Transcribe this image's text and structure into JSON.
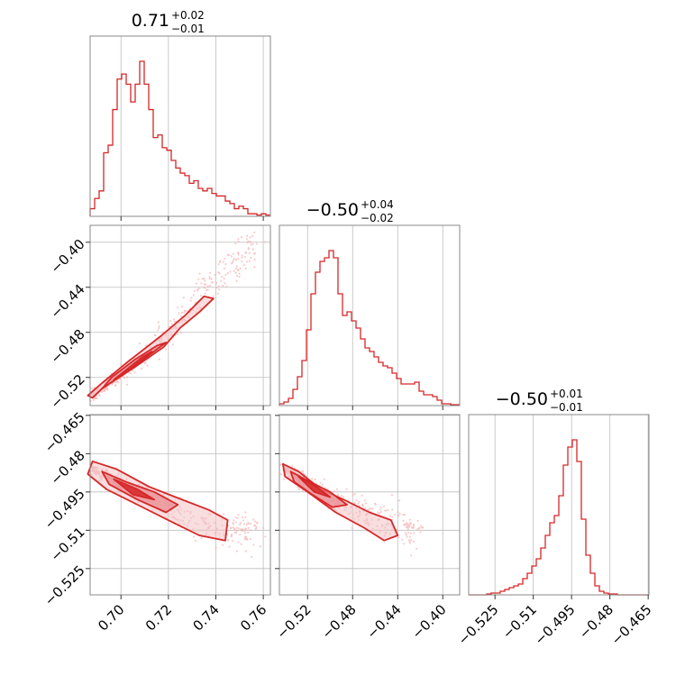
{
  "figure": {
    "type": "corner",
    "color": "#d62728",
    "fill_colors": [
      "#f2c2c4",
      "#e8888c",
      "#d62728"
    ],
    "sample_color": "#f4b6b8"
  },
  "chart_data": [
    {
      "type": "histogram",
      "panel": "diag-0",
      "title_main": "0.71",
      "title_plus": "+0.02",
      "title_minus": "−0.01",
      "xlim": [
        0.687,
        0.763
      ],
      "xticks": [
        0.7,
        0.72,
        0.74,
        0.76
      ],
      "bin_edges_start": 0.687,
      "bin_width": 0.0019,
      "counts": [
        3,
        7,
        10,
        25,
        28,
        42,
        54,
        56,
        52,
        45,
        52,
        61,
        52,
        42,
        31,
        32,
        27,
        26,
        22,
        19,
        17,
        16,
        13,
        14,
        11,
        10,
        11,
        9,
        8,
        8,
        6,
        5,
        3,
        4,
        3,
        1,
        1,
        0.5,
        1,
        0.5
      ]
    },
    {
      "type": "histogram",
      "panel": "diag-1",
      "title_main": "−0.50",
      "title_plus": "+0.04",
      "title_minus": "−0.02",
      "xlim": [
        -0.545,
        -0.385
      ],
      "xticks": [
        -0.52,
        -0.48,
        -0.44,
        -0.4
      ],
      "counts": [
        1,
        2,
        4,
        9,
        16,
        25,
        42,
        62,
        74,
        80,
        82,
        86,
        82,
        62,
        50,
        52,
        47,
        43,
        37,
        32,
        30,
        27,
        24,
        22,
        21,
        18,
        15,
        12,
        12,
        12,
        13,
        8,
        6,
        6,
        5,
        3,
        1,
        1,
        0.5,
        0.5
      ]
    },
    {
      "type": "histogram",
      "panel": "diag-2",
      "title_main": "−0.50",
      "title_plus": "+0.01",
      "title_minus": "−0.01",
      "xlim": [
        -0.5353,
        -0.4647
      ],
      "xticks": [
        -0.525,
        -0.51,
        -0.495,
        -0.48,
        -0.465
      ],
      "counts": [
        0,
        0,
        0,
        0,
        0.5,
        1,
        1,
        2,
        3,
        4,
        5,
        6,
        9,
        12,
        16,
        20,
        26,
        33,
        40,
        44,
        55,
        72,
        82,
        86,
        74,
        42,
        22,
        12,
        5,
        2,
        1,
        0.5,
        0.5,
        0,
        0,
        0,
        0,
        0,
        0,
        0
      ]
    },
    {
      "type": "scatter",
      "panel": "2d-1-0",
      "xlim": [
        0.687,
        0.763
      ],
      "ylim": [
        -0.545,
        -0.385
      ],
      "xticks": [
        0.7,
        0.72,
        0.74,
        0.76
      ],
      "yticks": [
        -0.4,
        -0.44,
        -0.48,
        -0.52
      ],
      "ridge": [
        [
          0.688,
          -0.535
        ],
        [
          0.7,
          -0.518
        ],
        [
          0.712,
          -0.5
        ],
        [
          0.724,
          -0.47
        ],
        [
          0.736,
          -0.44
        ],
        [
          0.748,
          -0.42
        ],
        [
          0.757,
          -0.4
        ]
      ],
      "contours": [
        [
          [
            0.688,
            -0.538
          ],
          [
            0.693,
            -0.528
          ],
          [
            0.705,
            -0.512
          ],
          [
            0.718,
            -0.493
          ],
          [
            0.725,
            -0.476
          ],
          [
            0.733,
            -0.462
          ],
          [
            0.739,
            -0.45
          ],
          [
            0.735,
            -0.448
          ],
          [
            0.727,
            -0.465
          ],
          [
            0.717,
            -0.483
          ],
          [
            0.703,
            -0.506
          ],
          [
            0.692,
            -0.525
          ],
          [
            0.686,
            -0.536
          ]
        ],
        [
          [
            0.692,
            -0.53
          ],
          [
            0.702,
            -0.516
          ],
          [
            0.712,
            -0.5
          ],
          [
            0.719,
            -0.489
          ],
          [
            0.715,
            -0.492
          ],
          [
            0.706,
            -0.504
          ],
          [
            0.696,
            -0.52
          ]
        ],
        [
          [
            0.697,
            -0.522
          ],
          [
            0.706,
            -0.51
          ],
          [
            0.713,
            -0.497
          ],
          [
            0.709,
            -0.502
          ]
        ]
      ]
    },
    {
      "type": "scatter",
      "panel": "2d-2-0",
      "xlim": [
        0.687,
        0.763
      ],
      "ylim": [
        -0.5353,
        -0.4647
      ],
      "xticks": [
        0.7,
        0.72,
        0.74,
        0.76
      ],
      "yticks": [
        -0.465,
        -0.48,
        -0.495,
        -0.51,
        -0.525
      ],
      "ridge": [
        [
          0.688,
          -0.486
        ],
        [
          0.7,
          -0.492
        ],
        [
          0.712,
          -0.497
        ],
        [
          0.724,
          -0.503
        ],
        [
          0.736,
          -0.508
        ],
        [
          0.748,
          -0.511
        ],
        [
          0.757,
          -0.508
        ]
      ],
      "contours": [
        [
          [
            0.688,
            -0.483
          ],
          [
            0.698,
            -0.486
          ],
          [
            0.712,
            -0.493
          ],
          [
            0.723,
            -0.497
          ],
          [
            0.737,
            -0.502
          ],
          [
            0.745,
            -0.506
          ],
          [
            0.744,
            -0.514
          ],
          [
            0.733,
            -0.512
          ],
          [
            0.722,
            -0.507
          ],
          [
            0.707,
            -0.5
          ],
          [
            0.694,
            -0.494
          ],
          [
            0.686,
            -0.488
          ]
        ],
        [
          [
            0.692,
            -0.487
          ],
          [
            0.702,
            -0.491
          ],
          [
            0.714,
            -0.495
          ],
          [
            0.724,
            -0.5
          ],
          [
            0.719,
            -0.503
          ],
          [
            0.707,
            -0.498
          ],
          [
            0.695,
            -0.492
          ]
        ],
        [
          [
            0.697,
            -0.49
          ],
          [
            0.707,
            -0.494
          ],
          [
            0.714,
            -0.498
          ],
          [
            0.705,
            -0.496
          ]
        ]
      ]
    },
    {
      "type": "scatter",
      "panel": "2d-2-1",
      "xlim": [
        -0.545,
        -0.385
      ],
      "ylim": [
        -0.5353,
        -0.4647
      ],
      "xticks": [
        -0.52,
        -0.48,
        -0.44,
        -0.4
      ],
      "yticks": [
        -0.465,
        -0.48,
        -0.495,
        -0.51,
        -0.525
      ],
      "ridge": [
        [
          -0.54,
          -0.486
        ],
        [
          -0.52,
          -0.492
        ],
        [
          -0.5,
          -0.497
        ],
        [
          -0.48,
          -0.501
        ],
        [
          -0.46,
          -0.505
        ],
        [
          -0.44,
          -0.508
        ],
        [
          -0.42,
          -0.512
        ]
      ],
      "contours": [
        [
          [
            -0.542,
            -0.484
          ],
          [
            -0.528,
            -0.487
          ],
          [
            -0.508,
            -0.494
          ],
          [
            -0.488,
            -0.498
          ],
          [
            -0.465,
            -0.503
          ],
          [
            -0.446,
            -0.506
          ],
          [
            -0.44,
            -0.512
          ],
          [
            -0.452,
            -0.514
          ],
          [
            -0.47,
            -0.509
          ],
          [
            -0.495,
            -0.503
          ],
          [
            -0.52,
            -0.495
          ],
          [
            -0.54,
            -0.489
          ]
        ],
        [
          [
            -0.535,
            -0.487
          ],
          [
            -0.518,
            -0.491
          ],
          [
            -0.5,
            -0.495
          ],
          [
            -0.485,
            -0.5
          ],
          [
            -0.498,
            -0.501
          ],
          [
            -0.516,
            -0.496
          ],
          [
            -0.532,
            -0.491
          ]
        ],
        [
          [
            -0.528,
            -0.489
          ],
          [
            -0.512,
            -0.493
          ],
          [
            -0.5,
            -0.497
          ],
          [
            -0.514,
            -0.495
          ]
        ]
      ]
    }
  ]
}
